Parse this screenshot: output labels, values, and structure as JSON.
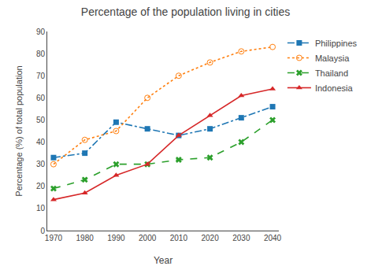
{
  "chart_data": {
    "type": "line",
    "title": "Percentage of the population living in cities",
    "xlabel": "Year",
    "ylabel": "Percentage (%) of total population",
    "x": [
      1970,
      1980,
      1990,
      2000,
      2010,
      2020,
      2030,
      2040
    ],
    "series": [
      {
        "name": "Philippines",
        "values": [
          33,
          35,
          49,
          46,
          43,
          46,
          51,
          56
        ],
        "line_style": "dashdot",
        "marker": "square"
      },
      {
        "name": "Malaysia",
        "values": [
          30,
          41,
          45,
          60,
          70,
          76,
          81,
          83
        ],
        "line_style": "dot",
        "marker": "circle-open"
      },
      {
        "name": "Thailand",
        "values": [
          19,
          23,
          30,
          30,
          32,
          33,
          40,
          50
        ],
        "line_style": "dash",
        "marker": "x"
      },
      {
        "name": "Indonesia",
        "values": [
          14,
          17,
          25,
          30,
          43,
          52,
          61,
          64
        ],
        "line_style": "solid",
        "marker": "triangle-up"
      }
    ],
    "xlim": [
      1968,
      2042
    ],
    "xticks": [
      1970,
      1980,
      1990,
      2000,
      2010,
      2020,
      2030,
      2040
    ],
    "ylim": [
      0,
      90
    ],
    "yticks": [
      0,
      10,
      20,
      30,
      40,
      50,
      60,
      70,
      80,
      90
    ],
    "grid": false,
    "legend": "right"
  }
}
